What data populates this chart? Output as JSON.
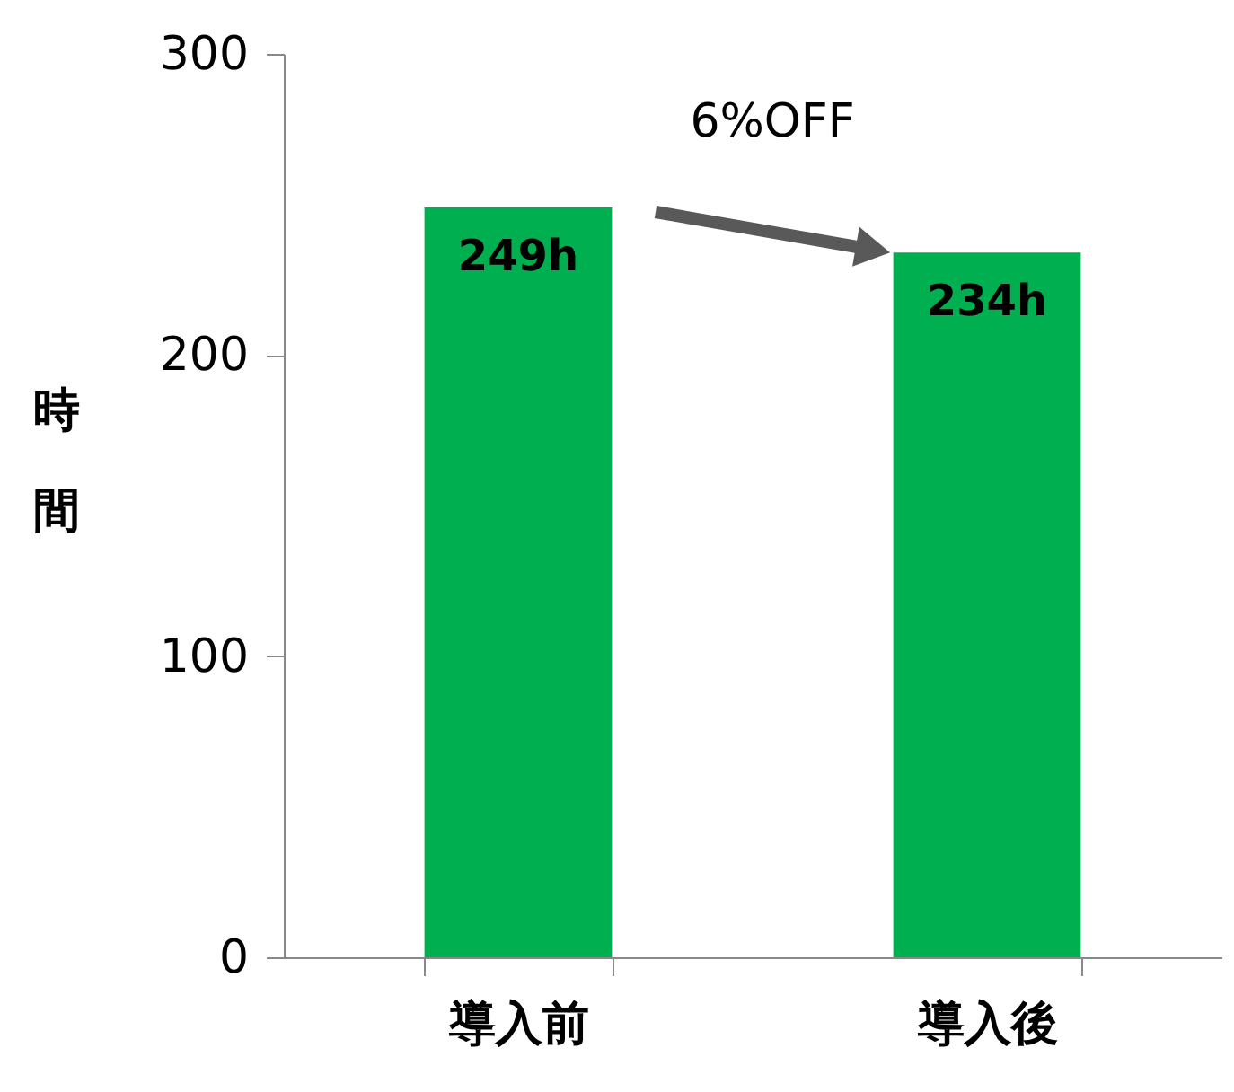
{
  "chart_data": {
    "type": "bar",
    "categories": [
      "導入前",
      "導入後"
    ],
    "values": [
      249,
      234
    ],
    "value_labels": [
      "249h",
      "234h"
    ],
    "color": "#00b050",
    "ylabel": "時間",
    "ylim": [
      0,
      300
    ],
    "yticks": [
      0,
      100,
      200,
      300
    ],
    "annotations": [
      "6%OFF"
    ],
    "grid": false
  }
}
